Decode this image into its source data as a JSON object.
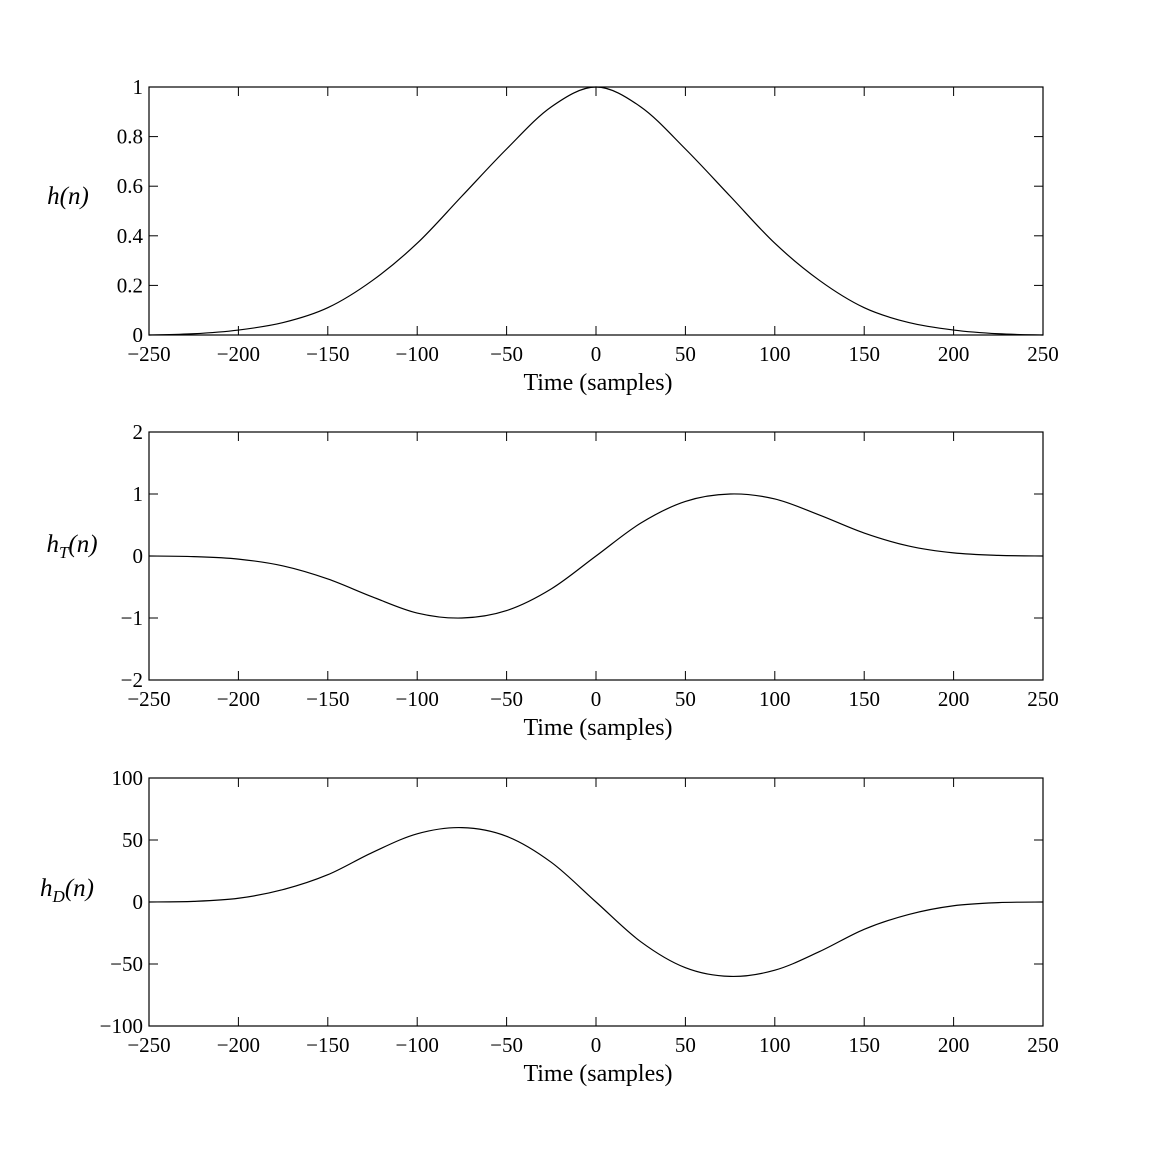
{
  "chart_data": [
    {
      "type": "line",
      "ylabel_base": "h",
      "ylabel_sub": "",
      "ylabel_arg": "(n)",
      "xlabel": "Time (samples)",
      "xlim": [
        -250,
        250
      ],
      "ylim": [
        0,
        1
      ],
      "xticks": [
        -250,
        -200,
        -150,
        -100,
        -50,
        0,
        50,
        100,
        150,
        200,
        250
      ],
      "xtick_labels": [
        "−250",
        "−200",
        "−150",
        "−100",
        "−50",
        "0",
        "50",
        "100",
        "150",
        "200",
        "250"
      ],
      "yticks": [
        0,
        0.2,
        0.4,
        0.6,
        0.8,
        1
      ],
      "ytick_labels": [
        "0",
        "0.2",
        "0.4",
        "0.6",
        "0.8",
        "1"
      ],
      "grid": false,
      "series": [
        {
          "x": [
            -250,
            -225,
            -200,
            -175,
            -150,
            -125,
            -100,
            -75,
            -50,
            -25,
            0,
            25,
            50,
            75,
            100,
            125,
            150,
            175,
            200,
            225,
            250
          ],
          "values": [
            0.0,
            0.005,
            0.02,
            0.05,
            0.11,
            0.22,
            0.37,
            0.56,
            0.75,
            0.92,
            1.0,
            0.92,
            0.75,
            0.56,
            0.37,
            0.22,
            0.11,
            0.05,
            0.02,
            0.005,
            0.0
          ]
        }
      ]
    },
    {
      "type": "line",
      "ylabel_base": "h",
      "ylabel_sub": "T",
      "ylabel_arg": "(n)",
      "xlabel": "Time (samples)",
      "xlim": [
        -250,
        250
      ],
      "ylim": [
        -2,
        2
      ],
      "xticks": [
        -250,
        -200,
        -150,
        -100,
        -50,
        0,
        50,
        100,
        150,
        200,
        250
      ],
      "xtick_labels": [
        "−250",
        "−200",
        "−150",
        "−100",
        "−50",
        "0",
        "50",
        "100",
        "150",
        "200",
        "250"
      ],
      "yticks": [
        -2,
        -1,
        0,
        1,
        2
      ],
      "ytick_labels": [
        "−2",
        "−1",
        "0",
        "1",
        "2"
      ],
      "grid": false,
      "series": [
        {
          "x": [
            -250,
            -225,
            -200,
            -175,
            -150,
            -125,
            -100,
            -75,
            -50,
            -25,
            0,
            25,
            50,
            75,
            100,
            125,
            150,
            175,
            200,
            225,
            250
          ],
          "values": [
            0.0,
            -0.01,
            -0.05,
            -0.16,
            -0.37,
            -0.66,
            -0.92,
            -1.0,
            -0.88,
            -0.53,
            0.0,
            0.53,
            0.88,
            1.0,
            0.92,
            0.66,
            0.37,
            0.16,
            0.05,
            0.01,
            0.0
          ]
        }
      ]
    },
    {
      "type": "line",
      "ylabel_base": "h",
      "ylabel_sub": "D",
      "ylabel_arg": "(n)",
      "xlabel": "Time (samples)",
      "xlim": [
        -250,
        250
      ],
      "ylim": [
        -100,
        100
      ],
      "xticks": [
        -250,
        -200,
        -150,
        -100,
        -50,
        0,
        50,
        100,
        150,
        200,
        250
      ],
      "xtick_labels": [
        "−250",
        "−200",
        "−150",
        "−100",
        "−50",
        "0",
        "50",
        "100",
        "150",
        "200",
        "250"
      ],
      "yticks": [
        -100,
        -50,
        0,
        50,
        100
      ],
      "ytick_labels": [
        "−100",
        "−50",
        "0",
        "50",
        "100"
      ],
      "grid": false,
      "series": [
        {
          "x": [
            -250,
            -225,
            -200,
            -175,
            -150,
            -125,
            -100,
            -75,
            -50,
            -25,
            0,
            25,
            50,
            75,
            100,
            125,
            150,
            175,
            200,
            225,
            250
          ],
          "values": [
            0.0,
            0.5,
            3,
            10,
            22,
            40,
            55,
            60,
            53,
            32,
            0,
            -32,
            -53,
            -60,
            -55,
            -40,
            -22,
            -10,
            -3,
            -0.5,
            0.0
          ]
        }
      ]
    }
  ]
}
